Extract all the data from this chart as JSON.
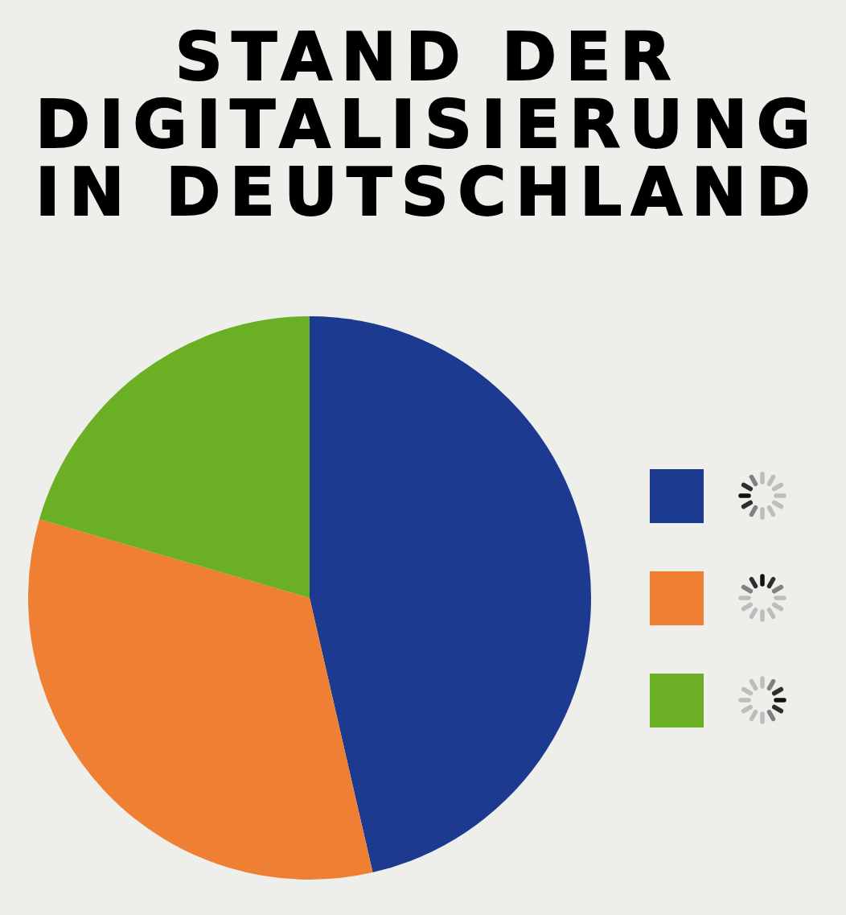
{
  "chart_data": {
    "type": "pie",
    "title": "STAND DER DIGITALISIERUNG IN DEUTSCHLAND",
    "categories": [
      null,
      null,
      null
    ],
    "values": [
      46.4,
      33.1,
      20.5
    ],
    "colors": [
      "#1c3a8f",
      "#ee7f33",
      "#6aaf24"
    ]
  }
}
